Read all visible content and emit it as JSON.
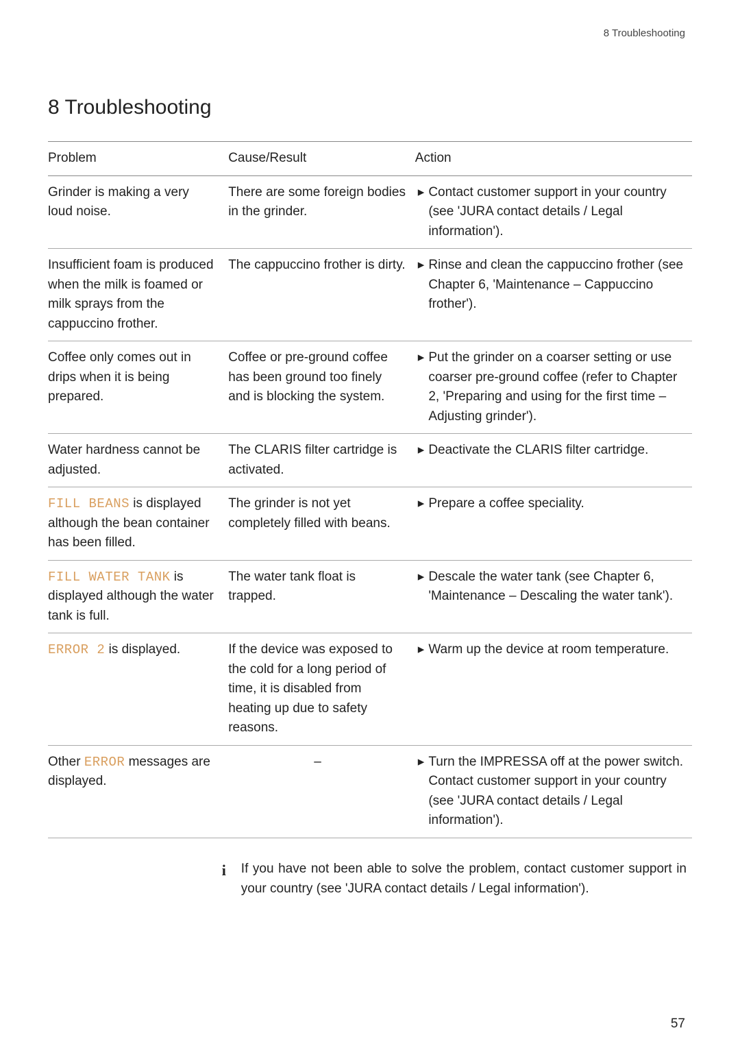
{
  "runningHeader": "8 Troubleshooting",
  "chapterTitle": "8   Troubleshooting",
  "columns": {
    "problem": "Problem",
    "cause": "Cause/Result",
    "action": "Action"
  },
  "rows": [
    {
      "problem_parts": [
        {
          "t": "Grinder is making a very loud noise."
        }
      ],
      "cause": "There are some foreign bodies in the grinder.",
      "action": "Contact customer support in your country (see 'JURA contact details / Legal information').",
      "hasBullet": true
    },
    {
      "problem_parts": [
        {
          "t": "Insufficient foam is produced when the milk is foamed or milk sprays from the cappuccino frother."
        }
      ],
      "cause": "The cappuccino frother is dirty.",
      "action": "Rinse and clean the cappuccino frother (see Chapter 6, 'Maintenance – Cappuccino frother').",
      "hasBullet": true
    },
    {
      "problem_parts": [
        {
          "t": "Coffee only comes out in drips when it is being prepared."
        }
      ],
      "cause": "Coffee or pre-ground coffee has been ground too finely and is blocking the system.",
      "action": "Put the grinder on a coarser setting or use coarser pre-ground coffee (refer to Chapter 2, 'Preparing and using for the first time – Adjusting grinder').",
      "hasBullet": true
    },
    {
      "problem_parts": [
        {
          "t": "Water hardness cannot be adjusted."
        }
      ],
      "cause": "The CLARIS filter cartridge is activated.",
      "action": "Deactivate the CLARIS filter cartridge.",
      "hasBullet": true
    },
    {
      "problem_parts": [
        {
          "d": "FILL BEANS"
        },
        {
          "t": " is displayed although the bean container has been filled."
        }
      ],
      "cause": "The grinder is not yet completely filled with beans.",
      "action": "Prepare a coffee speciality.",
      "hasBullet": true
    },
    {
      "problem_parts": [
        {
          "d": "FILL WATER TANK"
        },
        {
          "t": " is displayed although the water tank is full."
        }
      ],
      "cause": "The water tank float is trapped.",
      "action": "Descale the water tank (see Chapter 6, 'Maintenance – Descaling the water tank').",
      "hasBullet": true
    },
    {
      "problem_parts": [
        {
          "d": "ERROR 2"
        },
        {
          "t": " is displayed."
        }
      ],
      "cause": "If the device was exposed to the cold for a long period of time, it is disabled from heating up due to safety reasons.",
      "action": "Warm up the device at room temperature.",
      "hasBullet": true
    },
    {
      "problem_parts": [
        {
          "t": "Other "
        },
        {
          "d": "ERROR"
        },
        {
          "t": " messages are displayed."
        }
      ],
      "cause": "–",
      "causeCentered": true,
      "action": "Turn the IMPRESSA off at the power switch. Contact customer support in your country (see 'JURA contact details / Legal information').",
      "hasBullet": true
    }
  ],
  "info": {
    "icon": "i",
    "text": "If you have not been able to solve the problem, contact customer support in your country (see 'JURA contact details / Legal information')."
  },
  "pageNumber": "57",
  "bulletGlyph": "▸"
}
